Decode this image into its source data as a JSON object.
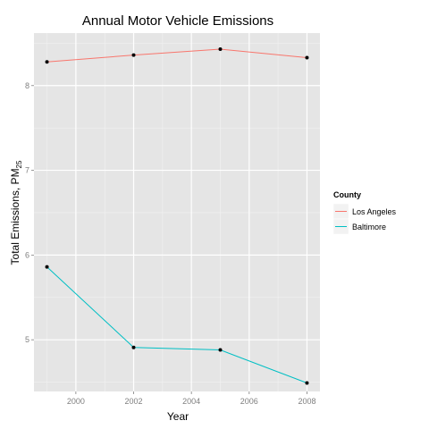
{
  "chart_data": {
    "type": "line",
    "title": "Annual Motor Vehicle Emissions",
    "xlabel": "Year",
    "ylabel": "Total Emissions, PM",
    "ylabel_subscript": "25",
    "x": [
      1999,
      2002,
      2005,
      2008
    ],
    "x_ticks": [
      2000,
      2002,
      2004,
      2006,
      2008
    ],
    "x_tick_labels": [
      "2000",
      "2002",
      "2004",
      "2006",
      "2008"
    ],
    "y_ticks": [
      5,
      6,
      7,
      8
    ],
    "y_tick_labels": [
      "5",
      "6",
      "7",
      "8"
    ],
    "xlim": [
      1998.55,
      2008.45
    ],
    "ylim": [
      4.39,
      8.62
    ],
    "grid": true,
    "legend_position": "right",
    "legend_title": "County",
    "series": [
      {
        "name": "Los Angeles",
        "color": "#F8766D",
        "values": [
          8.28,
          8.36,
          8.43,
          8.33
        ]
      },
      {
        "name": "Baltimore",
        "color": "#00BFC4",
        "values": [
          5.86,
          4.91,
          4.88,
          4.49
        ]
      }
    ],
    "colors": {
      "panel_background": "#e5e5e5",
      "grid_major": "#ffffff",
      "grid_minor": "#f2f2f2",
      "point": "#000000"
    }
  }
}
